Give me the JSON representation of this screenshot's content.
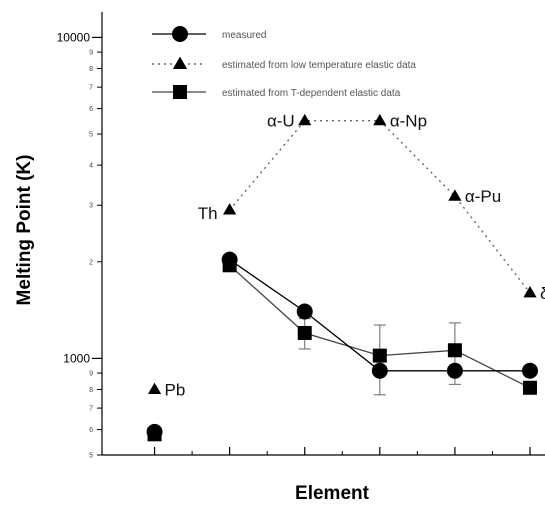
{
  "chart_data": {
    "type": "line",
    "title": "",
    "xlabel": "Element",
    "ylabel": "Melting Point (K)",
    "yscale": "log",
    "ylim": [
      500,
      12000
    ],
    "xlim": [
      0.3,
      6.2
    ],
    "grid": false,
    "legend_position": "top",
    "y_major_ticks": [
      {
        "value": 1000,
        "label": "1000"
      },
      {
        "value": 10000,
        "label": "10000"
      }
    ],
    "y_minor_ticks": [
      {
        "value": 500,
        "label": "5"
      },
      {
        "value": 600,
        "label": "6"
      },
      {
        "value": 700,
        "label": "7"
      },
      {
        "value": 800,
        "label": "8"
      },
      {
        "value": 900,
        "label": "9"
      },
      {
        "value": 2000,
        "label": "2"
      },
      {
        "value": 3000,
        "label": "3"
      },
      {
        "value": 4000,
        "label": "4"
      },
      {
        "value": 5000,
        "label": "5"
      },
      {
        "value": 6000,
        "label": "6"
      },
      {
        "value": 7000,
        "label": "7"
      },
      {
        "value": 8000,
        "label": "8"
      },
      {
        "value": 9000,
        "label": "9"
      }
    ],
    "x_ticks": [
      1,
      2,
      3,
      4,
      5,
      6
    ],
    "series": [
      {
        "name": "measured",
        "marker": "circle",
        "line": "solid",
        "points": [
          {
            "x": 1,
            "y": 590
          },
          {
            "x": 2,
            "y": 2030
          },
          {
            "x": 3,
            "y": 1400
          },
          {
            "x": 4,
            "y": 915
          },
          {
            "x": 5,
            "y": 915
          },
          {
            "x": 6,
            "y": 915
          }
        ]
      },
      {
        "name": "estimated from low temperature elastic data",
        "marker": "triangle",
        "line": "dotted",
        "points": [
          {
            "x": 1,
            "y": 800
          },
          {
            "x": 2,
            "y": 2900
          },
          {
            "x": 3,
            "y": 5500
          },
          {
            "x": 4,
            "y": 5500
          },
          {
            "x": 5,
            "y": 3200
          },
          {
            "x": 6,
            "y": 1600
          }
        ]
      },
      {
        "name": "estimated from T-dependent elastic data",
        "marker": "square",
        "line": "solid",
        "points": [
          {
            "x": 1,
            "y": 580,
            "err": 0
          },
          {
            "x": 2,
            "y": 1950,
            "err": 0
          },
          {
            "x": 3,
            "y": 1200,
            "err": 130
          },
          {
            "x": 4,
            "y": 1020,
            "err": 250
          },
          {
            "x": 5,
            "y": 1060,
            "err": 230
          },
          {
            "x": 6,
            "y": 810,
            "err": 0
          }
        ]
      }
    ],
    "annotations": [
      {
        "text": "Pb",
        "x": 1,
        "y": 800
      },
      {
        "text": "Th",
        "x": 2,
        "y": 2900
      },
      {
        "text": "α-U",
        "x": 3,
        "y": 5500
      },
      {
        "text": "α-Np",
        "x": 4,
        "y": 5500
      },
      {
        "text": "α-Pu",
        "x": 5,
        "y": 3200
      },
      {
        "text": "δ-Pu",
        "x": 6,
        "y": 1600
      }
    ]
  }
}
